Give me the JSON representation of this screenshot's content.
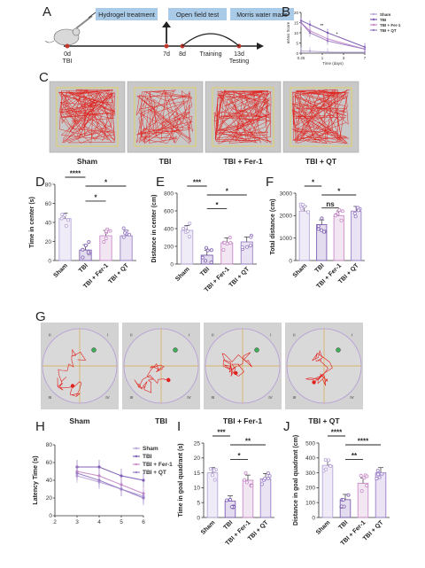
{
  "panels": {
    "A": "A",
    "B": "B",
    "C": "C",
    "D": "D",
    "E": "E",
    "F": "F",
    "G": "G",
    "H": "H",
    "I": "I",
    "J": "J"
  },
  "timeline": {
    "box_hydrogel": "Hydrogel treatment",
    "box_open_field": "Open field test",
    "box_morris": "Morris water maze",
    "day0": "0d",
    "tbi": "TBI",
    "day7": "7d",
    "day8": "8d",
    "day13": "13d",
    "training": "Training",
    "testing": "Testing"
  },
  "groups": [
    "Sham",
    "TBI",
    "TBI + Fer-1",
    "TBI + QT"
  ],
  "group_colors": [
    "#b8a6d9",
    "#7f5fb3",
    "#c98bc9",
    "#9a7fc7"
  ],
  "chart_data": [
    {
      "id": "B",
      "type": "line",
      "xlabel": "Time (days)",
      "ylabel": "mNss Score",
      "x_ticks": [
        "0.25",
        "1",
        "3",
        "7"
      ],
      "y_ticks": [
        "20",
        "15",
        "10",
        "5",
        "0"
      ],
      "ylim": [
        0,
        20
      ],
      "legend": [
        "Sham",
        "TBI",
        "TBI + Fer-1",
        "TBI + QT"
      ],
      "legend_placement": "right",
      "series": [
        {
          "name": "Sham",
          "values": [
            1,
            1,
            0.5,
            0.5
          ]
        },
        {
          "name": "TBI",
          "values": [
            16,
            14,
            10,
            3
          ]
        },
        {
          "name": "TBI + Fer-1",
          "values": [
            15,
            11,
            7,
            2
          ]
        },
        {
          "name": "TBI + QT",
          "values": [
            15,
            10,
            6,
            2
          ]
        }
      ],
      "annotations": [
        "**",
        "*"
      ]
    },
    {
      "id": "D",
      "type": "bar",
      "ylabel": "Time in center (s)",
      "y_ticks": [
        "80",
        "60",
        "40",
        "20",
        "0"
      ],
      "ylim": [
        0,
        80
      ],
      "categories": [
        "Sham",
        "TBI",
        "TBI + Fer-1",
        "TBI + QT"
      ],
      "values": [
        44,
        11,
        26,
        26
      ],
      "significance": [
        "****",
        "*",
        "*"
      ]
    },
    {
      "id": "E",
      "type": "bar",
      "ylabel": "Distance in center (cm)",
      "y_ticks": [
        "800",
        "600",
        "400",
        "200",
        "0"
      ],
      "ylim": [
        0,
        800
      ],
      "categories": [
        "Sham",
        "TBI",
        "TBI + Fer-1",
        "TBI + QT"
      ],
      "values": [
        380,
        100,
        240,
        250
      ],
      "significance": [
        "***",
        "*",
        "*"
      ]
    },
    {
      "id": "F",
      "type": "bar",
      "ylabel": "Total distance (cm)",
      "y_ticks": [
        "3000",
        "2000",
        "1000",
        "0"
      ],
      "ylim": [
        0,
        3000
      ],
      "categories": [
        "Sham",
        "TBI",
        "TBI + Fer-1",
        "TBI + QT"
      ],
      "values": [
        2200,
        1600,
        2000,
        2200
      ],
      "significance": [
        "*",
        "ns",
        "*"
      ]
    },
    {
      "id": "H",
      "type": "line",
      "ylabel": "Latency Time (s)",
      "x_ticks": [
        "2",
        "3",
        "4",
        "5",
        "6"
      ],
      "y_ticks": [
        "80",
        "60",
        "40",
        "20",
        "0"
      ],
      "ylim": [
        0,
        80
      ],
      "legend": [
        "Sham",
        "TBI",
        "TBI + Fer-1",
        "TBI + QT"
      ],
      "legend_placement": "right",
      "series": [
        {
          "name": "Sham",
          "values": [
            45,
            38,
            30,
            22
          ]
        },
        {
          "name": "TBI",
          "values": [
            55,
            55,
            45,
            40
          ]
        },
        {
          "name": "TBI + Fer-1",
          "values": [
            50,
            45,
            35,
            25
          ]
        },
        {
          "name": "TBI + QT",
          "values": [
            48,
            40,
            30,
            20
          ]
        }
      ]
    },
    {
      "id": "I",
      "type": "bar",
      "ylabel": "Time in goal quadrant (s)",
      "y_ticks": [
        "25",
        "20",
        "15",
        "10",
        "5",
        "0"
      ],
      "ylim": [
        0,
        25
      ],
      "categories": [
        "Sham",
        "TBI",
        "TBI + Fer-1",
        "TBI + QT"
      ],
      "values": [
        15,
        5.5,
        12.5,
        13
      ],
      "significance": [
        "***",
        "*",
        "**"
      ]
    },
    {
      "id": "J",
      "type": "bar",
      "ylabel": "Distance in goal quadrant (cm)",
      "y_ticks": [
        "500",
        "400",
        "300",
        "200",
        "100",
        "0"
      ],
      "ylim": [
        0,
        500
      ],
      "categories": [
        "Sham",
        "TBI",
        "TBI + Fer-1",
        "TBI + QT"
      ],
      "values": [
        350,
        120,
        230,
        300
      ],
      "significance": [
        "****",
        "**",
        "****"
      ]
    }
  ],
  "maze": {
    "quadrants": [
      "I",
      "II",
      "III",
      "IV"
    ]
  }
}
